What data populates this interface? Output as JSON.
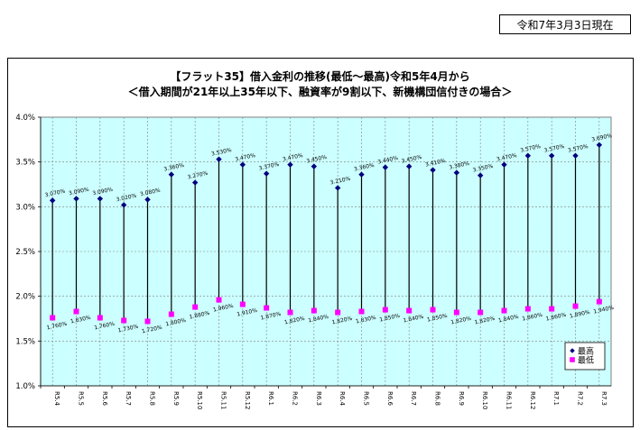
{
  "date_stamp": "令和7年3月3日現在",
  "chart_data": {
    "type": "line",
    "title": "【フラット35】借入金利の推移(最低～最高)令和5年4月から",
    "subtitle": "＜借入期間が21年以上35年以下、融資率が9割以下、新機構団信付きの場合＞",
    "categories": [
      "R5.4",
      "R5.5",
      "R5.6",
      "R5.7",
      "R5.8",
      "R5.9",
      "R5.10",
      "R5.11",
      "R5.12",
      "R6.1",
      "R6.2",
      "R6.3",
      "R6.4",
      "R6.5",
      "R6.6",
      "R6.7",
      "R6.8",
      "R6.9",
      "R6.10",
      "R6.11",
      "R6.12",
      "R7.1",
      "R7.2",
      "R7.3"
    ],
    "series": [
      {
        "name": "最高",
        "color": "#000080",
        "marker": "diamond",
        "values": [
          3.07,
          3.09,
          3.09,
          3.02,
          3.08,
          3.36,
          3.27,
          3.53,
          3.47,
          3.37,
          3.47,
          3.45,
          3.21,
          3.36,
          3.44,
          3.45,
          3.41,
          3.38,
          3.35,
          3.47,
          3.57,
          3.57,
          3.57,
          3.69
        ],
        "labels": [
          "3.070%",
          "3.090%",
          "3.090%",
          "3.020%",
          "3.080%",
          "3.360%",
          "3.270%",
          "3.530%",
          "3.470%",
          "3.370%",
          "3.470%",
          "3.450%",
          "3.210%",
          "3.360%",
          "3.440%",
          "3.450%",
          "3.410%",
          "3.380%",
          "3.350%",
          "3.470%",
          "3.570%",
          "3.570%",
          "3.570%",
          "3.690%"
        ]
      },
      {
        "name": "最低",
        "color": "#ff00ff",
        "marker": "square",
        "values": [
          1.76,
          1.83,
          1.76,
          1.73,
          1.72,
          1.8,
          1.88,
          1.96,
          1.91,
          1.87,
          1.82,
          1.84,
          1.82,
          1.83,
          1.85,
          1.84,
          1.85,
          1.82,
          1.82,
          1.84,
          1.86,
          1.86,
          1.89,
          1.94
        ],
        "labels": [
          "1.760%",
          "1.830%",
          "1.760%",
          "1.730%",
          "1.720%",
          "1.800%",
          "1.880%",
          "1.960%",
          "1.910%",
          "1.870%",
          "1.820%",
          "1.840%",
          "1.820%",
          "1.830%",
          "1.850%",
          "1.840%",
          "1.850%",
          "1.820%",
          "1.820%",
          "1.840%",
          "1.860%",
          "1.860%",
          "1.890%",
          "1.940%"
        ]
      }
    ],
    "y_ticks": [
      "4.0%",
      "3.5%",
      "3.0%",
      "2.5%",
      "2.0%",
      "1.5%",
      "1.0%"
    ],
    "ylim": [
      1.0,
      4.0
    ],
    "grid": true,
    "plot_background": "#ccffff",
    "legend": {
      "placement": "bottom-right",
      "entries": [
        "最高",
        "最低"
      ]
    }
  }
}
